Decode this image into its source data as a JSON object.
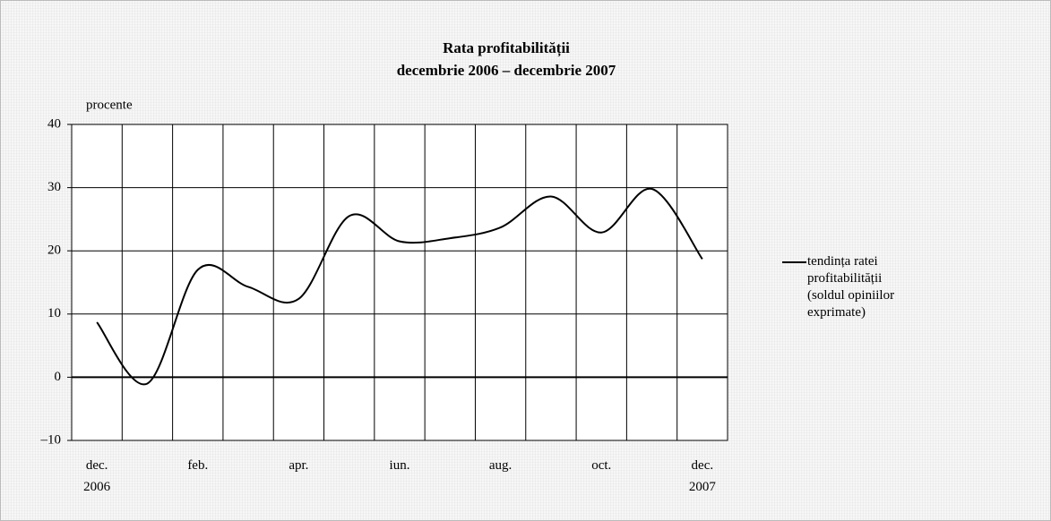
{
  "chart_data": {
    "type": "line",
    "title": "Rata profitabilității",
    "subtitle": "decembrie 2006 – decembrie 2007",
    "y_label": "procente",
    "categories": [
      "dec. 2006",
      null,
      "feb.",
      null,
      "apr.",
      null,
      "iun.",
      null,
      "aug.",
      null,
      "oct.",
      null,
      "dec. 2007"
    ],
    "series": [
      {
        "name": "tendința ratei profitabilității (soldul opiniilor exprimate)",
        "color": "#000000",
        "values": [
          8.7,
          -1,
          17,
          14.3,
          12.4,
          25.5,
          21.5,
          22,
          23.7,
          28.6,
          22.9,
          29.8,
          18.7
        ]
      }
    ],
    "ylim": [
      -10,
      40
    ],
    "yticks": [
      {
        "value": -10,
        "label": "–10"
      },
      0,
      10,
      20,
      30,
      40
    ],
    "grid": true,
    "legend": "right"
  }
}
